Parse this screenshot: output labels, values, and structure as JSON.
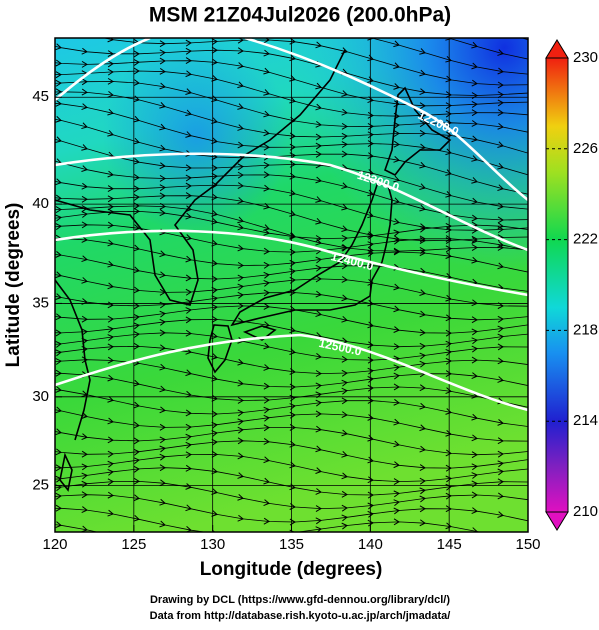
{
  "chart_data": {
    "type": "map",
    "title": "MSM 21Z04Jul2026 (200.0hPa)",
    "x_label": "Longitude (degrees)",
    "y_label": "Latitude  (degrees)",
    "projection": "mercator",
    "xlim": [
      120,
      150
    ],
    "ylim": [
      22.3,
      47.6
    ],
    "xticks": [
      120,
      125,
      130,
      135,
      140,
      145,
      150
    ],
    "yticks": [
      25,
      30,
      35,
      40,
      45
    ],
    "grid": true,
    "colorbar": {
      "lim": [
        210,
        230
      ],
      "ticks": [
        210,
        214,
        218,
        222,
        226,
        230
      ]
    },
    "contour_labels": [
      "12200.0",
      "12300.0",
      "12400.0",
      "12500.0"
    ],
    "footer": [
      "Drawing by DCL (https://www.gfd-dennou.org/library/dcl/)",
      "Data from http://database.rish.kyoto-u.ac.jp/arch/jmadata/"
    ]
  }
}
